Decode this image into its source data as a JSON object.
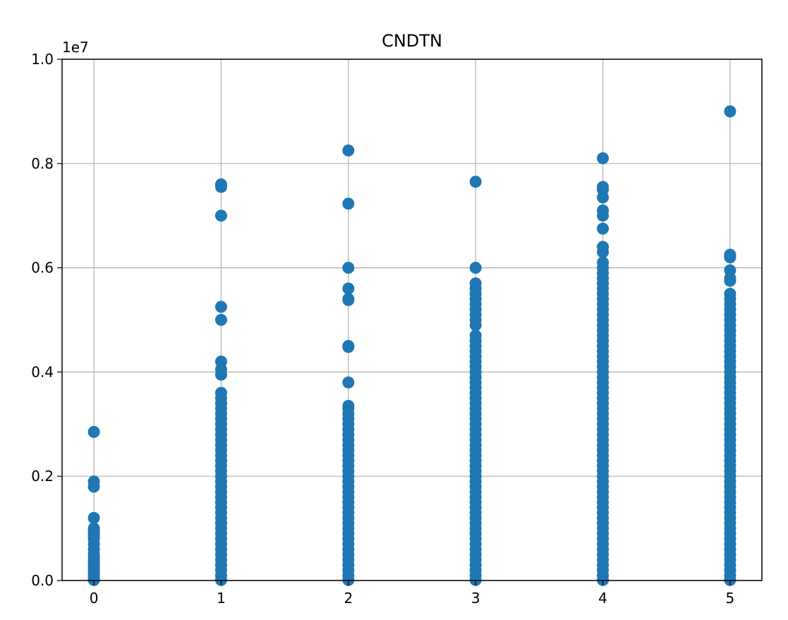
{
  "chart_data": {
    "type": "scatter",
    "title": "CNDTN",
    "xlabel": "",
    "ylabel": "",
    "x_ticks": [
      "0",
      "1",
      "2",
      "3",
      "4",
      "5"
    ],
    "y_ticks": [
      "0.0",
      "0.2",
      "0.4",
      "0.6",
      "0.8",
      "1.0"
    ],
    "y_offset_label": "1e7",
    "xlim": [
      -0.25,
      5.25
    ],
    "ylim": [
      0,
      10000000
    ],
    "grid": true,
    "marker_color": "#1f77b4",
    "series": [
      {
        "points": [
          [
            0,
            2850000
          ],
          [
            0,
            1900000
          ],
          [
            0,
            1800000
          ],
          [
            0,
            1200000
          ],
          [
            0,
            1000000
          ],
          [
            0,
            950000
          ],
          [
            0,
            900000
          ],
          [
            0,
            850000
          ],
          [
            0,
            800000
          ],
          [
            0,
            700000
          ],
          [
            0,
            600000
          ],
          [
            0,
            500000
          ],
          [
            0,
            450000
          ],
          [
            0,
            400000
          ],
          [
            0,
            350000
          ],
          [
            0,
            300000
          ],
          [
            0,
            250000
          ],
          [
            0,
            200000
          ],
          [
            0,
            150000
          ],
          [
            0,
            100000
          ],
          [
            0,
            50000
          ],
          [
            0,
            10000
          ],
          [
            1,
            7600000
          ],
          [
            1,
            7550000
          ],
          [
            1,
            7000000
          ],
          [
            1,
            5250000
          ],
          [
            1,
            5000000
          ],
          [
            1,
            4200000
          ],
          [
            1,
            4050000
          ],
          [
            1,
            3950000
          ],
          [
            1,
            3600000
          ],
          [
            1,
            3500000
          ],
          [
            1,
            3400000
          ],
          [
            1,
            3300000
          ],
          [
            1,
            3200000
          ],
          [
            1,
            3100000
          ],
          [
            1,
            3000000
          ],
          [
            1,
            2900000
          ],
          [
            1,
            2800000
          ],
          [
            1,
            2700000
          ],
          [
            1,
            2600000
          ],
          [
            1,
            2500000
          ],
          [
            1,
            2400000
          ],
          [
            1,
            2300000
          ],
          [
            1,
            2200000
          ],
          [
            1,
            2100000
          ],
          [
            1,
            2000000
          ],
          [
            1,
            1900000
          ],
          [
            1,
            1800000
          ],
          [
            1,
            1700000
          ],
          [
            1,
            1600000
          ],
          [
            1,
            1500000
          ],
          [
            1,
            1400000
          ],
          [
            1,
            1300000
          ],
          [
            1,
            1200000
          ],
          [
            1,
            1100000
          ],
          [
            1,
            1000000
          ],
          [
            1,
            900000
          ],
          [
            1,
            800000
          ],
          [
            1,
            700000
          ],
          [
            1,
            600000
          ],
          [
            1,
            500000
          ],
          [
            1,
            400000
          ],
          [
            1,
            300000
          ],
          [
            1,
            200000
          ],
          [
            1,
            100000
          ],
          [
            1,
            10000
          ],
          [
            2,
            8250000
          ],
          [
            2,
            7230000
          ],
          [
            2,
            6000000
          ],
          [
            2,
            5600000
          ],
          [
            2,
            5400000
          ],
          [
            2,
            5380000
          ],
          [
            2,
            4500000
          ],
          [
            2,
            4480000
          ],
          [
            2,
            3800000
          ],
          [
            2,
            3350000
          ],
          [
            2,
            3300000
          ],
          [
            2,
            3200000
          ],
          [
            2,
            3100000
          ],
          [
            2,
            3000000
          ],
          [
            2,
            2900000
          ],
          [
            2,
            2800000
          ],
          [
            2,
            2700000
          ],
          [
            2,
            2600000
          ],
          [
            2,
            2500000
          ],
          [
            2,
            2400000
          ],
          [
            2,
            2300000
          ],
          [
            2,
            2200000
          ],
          [
            2,
            2100000
          ],
          [
            2,
            2000000
          ],
          [
            2,
            1900000
          ],
          [
            2,
            1800000
          ],
          [
            2,
            1700000
          ],
          [
            2,
            1600000
          ],
          [
            2,
            1500000
          ],
          [
            2,
            1400000
          ],
          [
            2,
            1300000
          ],
          [
            2,
            1200000
          ],
          [
            2,
            1100000
          ],
          [
            2,
            1000000
          ],
          [
            2,
            900000
          ],
          [
            2,
            800000
          ],
          [
            2,
            700000
          ],
          [
            2,
            600000
          ],
          [
            2,
            500000
          ],
          [
            2,
            400000
          ],
          [
            2,
            300000
          ],
          [
            2,
            200000
          ],
          [
            2,
            100000
          ],
          [
            2,
            10000
          ],
          [
            3,
            7650000
          ],
          [
            3,
            6000000
          ],
          [
            3,
            5700000
          ],
          [
            3,
            5600000
          ],
          [
            3,
            5500000
          ],
          [
            3,
            5400000
          ],
          [
            3,
            5300000
          ],
          [
            3,
            5200000
          ],
          [
            3,
            5100000
          ],
          [
            3,
            5000000
          ],
          [
            3,
            4900000
          ],
          [
            3,
            4700000
          ],
          [
            3,
            4600000
          ],
          [
            3,
            4500000
          ],
          [
            3,
            4400000
          ],
          [
            3,
            4300000
          ],
          [
            3,
            4200000
          ],
          [
            3,
            4100000
          ],
          [
            3,
            4000000
          ],
          [
            3,
            3900000
          ],
          [
            3,
            3800000
          ],
          [
            3,
            3700000
          ],
          [
            3,
            3600000
          ],
          [
            3,
            3500000
          ],
          [
            3,
            3400000
          ],
          [
            3,
            3300000
          ],
          [
            3,
            3200000
          ],
          [
            3,
            3100000
          ],
          [
            3,
            3000000
          ],
          [
            3,
            2900000
          ],
          [
            3,
            2800000
          ],
          [
            3,
            2700000
          ],
          [
            3,
            2600000
          ],
          [
            3,
            2500000
          ],
          [
            3,
            2400000
          ],
          [
            3,
            2300000
          ],
          [
            3,
            2200000
          ],
          [
            3,
            2100000
          ],
          [
            3,
            2000000
          ],
          [
            3,
            1900000
          ],
          [
            3,
            1800000
          ],
          [
            3,
            1700000
          ],
          [
            3,
            1600000
          ],
          [
            3,
            1500000
          ],
          [
            3,
            1400000
          ],
          [
            3,
            1300000
          ],
          [
            3,
            1200000
          ],
          [
            3,
            1100000
          ],
          [
            3,
            1000000
          ],
          [
            3,
            900000
          ],
          [
            3,
            800000
          ],
          [
            3,
            700000
          ],
          [
            3,
            600000
          ],
          [
            3,
            500000
          ],
          [
            3,
            400000
          ],
          [
            3,
            300000
          ],
          [
            3,
            200000
          ],
          [
            3,
            100000
          ],
          [
            3,
            10000
          ],
          [
            4,
            8100000
          ],
          [
            4,
            7550000
          ],
          [
            4,
            7500000
          ],
          [
            4,
            7350000
          ],
          [
            4,
            7100000
          ],
          [
            4,
            7000000
          ],
          [
            4,
            6750000
          ],
          [
            4,
            6400000
          ],
          [
            4,
            6300000
          ],
          [
            4,
            6100000
          ],
          [
            4,
            6000000
          ],
          [
            4,
            5900000
          ],
          [
            4,
            5800000
          ],
          [
            4,
            5700000
          ],
          [
            4,
            5600000
          ],
          [
            4,
            5500000
          ],
          [
            4,
            5400000
          ],
          [
            4,
            5300000
          ],
          [
            4,
            5200000
          ],
          [
            4,
            5100000
          ],
          [
            4,
            5000000
          ],
          [
            4,
            4900000
          ],
          [
            4,
            4800000
          ],
          [
            4,
            4700000
          ],
          [
            4,
            4600000
          ],
          [
            4,
            4500000
          ],
          [
            4,
            4400000
          ],
          [
            4,
            4300000
          ],
          [
            4,
            4200000
          ],
          [
            4,
            4100000
          ],
          [
            4,
            4000000
          ],
          [
            4,
            3900000
          ],
          [
            4,
            3800000
          ],
          [
            4,
            3700000
          ],
          [
            4,
            3600000
          ],
          [
            4,
            3500000
          ],
          [
            4,
            3400000
          ],
          [
            4,
            3300000
          ],
          [
            4,
            3200000
          ],
          [
            4,
            3100000
          ],
          [
            4,
            3000000
          ],
          [
            4,
            2900000
          ],
          [
            4,
            2800000
          ],
          [
            4,
            2700000
          ],
          [
            4,
            2600000
          ],
          [
            4,
            2500000
          ],
          [
            4,
            2400000
          ],
          [
            4,
            2300000
          ],
          [
            4,
            2200000
          ],
          [
            4,
            2100000
          ],
          [
            4,
            2000000
          ],
          [
            4,
            1900000
          ],
          [
            4,
            1800000
          ],
          [
            4,
            1700000
          ],
          [
            4,
            1600000
          ],
          [
            4,
            1500000
          ],
          [
            4,
            1400000
          ],
          [
            4,
            1300000
          ],
          [
            4,
            1200000
          ],
          [
            4,
            1100000
          ],
          [
            4,
            1000000
          ],
          [
            4,
            900000
          ],
          [
            4,
            800000
          ],
          [
            4,
            700000
          ],
          [
            4,
            600000
          ],
          [
            4,
            500000
          ],
          [
            4,
            400000
          ],
          [
            4,
            300000
          ],
          [
            4,
            200000
          ],
          [
            4,
            100000
          ],
          [
            4,
            10000
          ],
          [
            5,
            9000000
          ],
          [
            5,
            6250000
          ],
          [
            5,
            6200000
          ],
          [
            5,
            5950000
          ],
          [
            5,
            5800000
          ],
          [
            5,
            5750000
          ],
          [
            5,
            5500000
          ],
          [
            5,
            5400000
          ],
          [
            5,
            5300000
          ],
          [
            5,
            5200000
          ],
          [
            5,
            5100000
          ],
          [
            5,
            5000000
          ],
          [
            5,
            4900000
          ],
          [
            5,
            4800000
          ],
          [
            5,
            4700000
          ],
          [
            5,
            4600000
          ],
          [
            5,
            4500000
          ],
          [
            5,
            4400000
          ],
          [
            5,
            4300000
          ],
          [
            5,
            4200000
          ],
          [
            5,
            4100000
          ],
          [
            5,
            4000000
          ],
          [
            5,
            3900000
          ],
          [
            5,
            3800000
          ],
          [
            5,
            3700000
          ],
          [
            5,
            3600000
          ],
          [
            5,
            3500000
          ],
          [
            5,
            3400000
          ],
          [
            5,
            3300000
          ],
          [
            5,
            3200000
          ],
          [
            5,
            3100000
          ],
          [
            5,
            3000000
          ],
          [
            5,
            2900000
          ],
          [
            5,
            2800000
          ],
          [
            5,
            2700000
          ],
          [
            5,
            2600000
          ],
          [
            5,
            2500000
          ],
          [
            5,
            2400000
          ],
          [
            5,
            2300000
          ],
          [
            5,
            2200000
          ],
          [
            5,
            2100000
          ],
          [
            5,
            2000000
          ],
          [
            5,
            1900000
          ],
          [
            5,
            1800000
          ],
          [
            5,
            1700000
          ],
          [
            5,
            1600000
          ],
          [
            5,
            1500000
          ],
          [
            5,
            1400000
          ],
          [
            5,
            1300000
          ],
          [
            5,
            1200000
          ],
          [
            5,
            1100000
          ],
          [
            5,
            1000000
          ],
          [
            5,
            900000
          ],
          [
            5,
            800000
          ],
          [
            5,
            700000
          ],
          [
            5,
            600000
          ],
          [
            5,
            500000
          ],
          [
            5,
            400000
          ],
          [
            5,
            300000
          ],
          [
            5,
            200000
          ],
          [
            5,
            100000
          ],
          [
            5,
            10000
          ]
        ]
      }
    ]
  }
}
